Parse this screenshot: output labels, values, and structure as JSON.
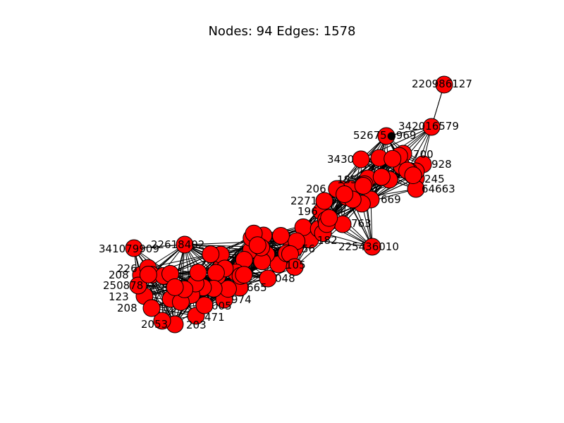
{
  "title": "Nodes: 94 Edges: 1578",
  "colors": {
    "node_fill": "#ff0000",
    "node_stroke": "#000000",
    "edge": "#000000",
    "background": "#ffffff"
  },
  "labeled_nodes": [
    {
      "id": "220986127",
      "label": "220986127"
    },
    {
      "id": "342016579",
      "label": "342016579"
    },
    {
      "id": "52675969",
      "label": "52675●969"
    },
    {
      "id": "3430",
      "label": "3430"
    },
    {
      "id": "700",
      "label": "700"
    },
    {
      "id": "928",
      "label": "928"
    },
    {
      "id": "245",
      "label": "245"
    },
    {
      "id": "64663",
      "label": "64663"
    },
    {
      "id": "185",
      "label": "185"
    },
    {
      "id": "206",
      "label": "206"
    },
    {
      "id": "669",
      "label": "669"
    },
    {
      "id": "2271",
      "label": "2271"
    },
    {
      "id": "196",
      "label": "196"
    },
    {
      "id": "763",
      "label": "763"
    },
    {
      "id": "225436010",
      "label": "225436010"
    },
    {
      "id": "182",
      "label": "182"
    },
    {
      "id": "56",
      "label": "56"
    },
    {
      "id": "105",
      "label": "105"
    },
    {
      "id": "048",
      "label": "048"
    },
    {
      "id": "665",
      "label": "665"
    },
    {
      "id": "974",
      "label": "974"
    },
    {
      "id": "005",
      "label": "005"
    },
    {
      "id": "471",
      "label": "471"
    },
    {
      "id": "203",
      "label": "203"
    },
    {
      "id": "341079909",
      "label": "341079909"
    },
    {
      "id": "2261840",
      "label": "22618402"
    },
    {
      "id": "226",
      "label": "226"
    },
    {
      "id": "208",
      "label": "208"
    },
    {
      "id": "250878",
      "label": "250878"
    },
    {
      "id": "123",
      "label": "123"
    },
    {
      "id": "208b",
      "label": "208"
    },
    {
      "id": "2053",
      "label": "2053"
    }
  ]
}
